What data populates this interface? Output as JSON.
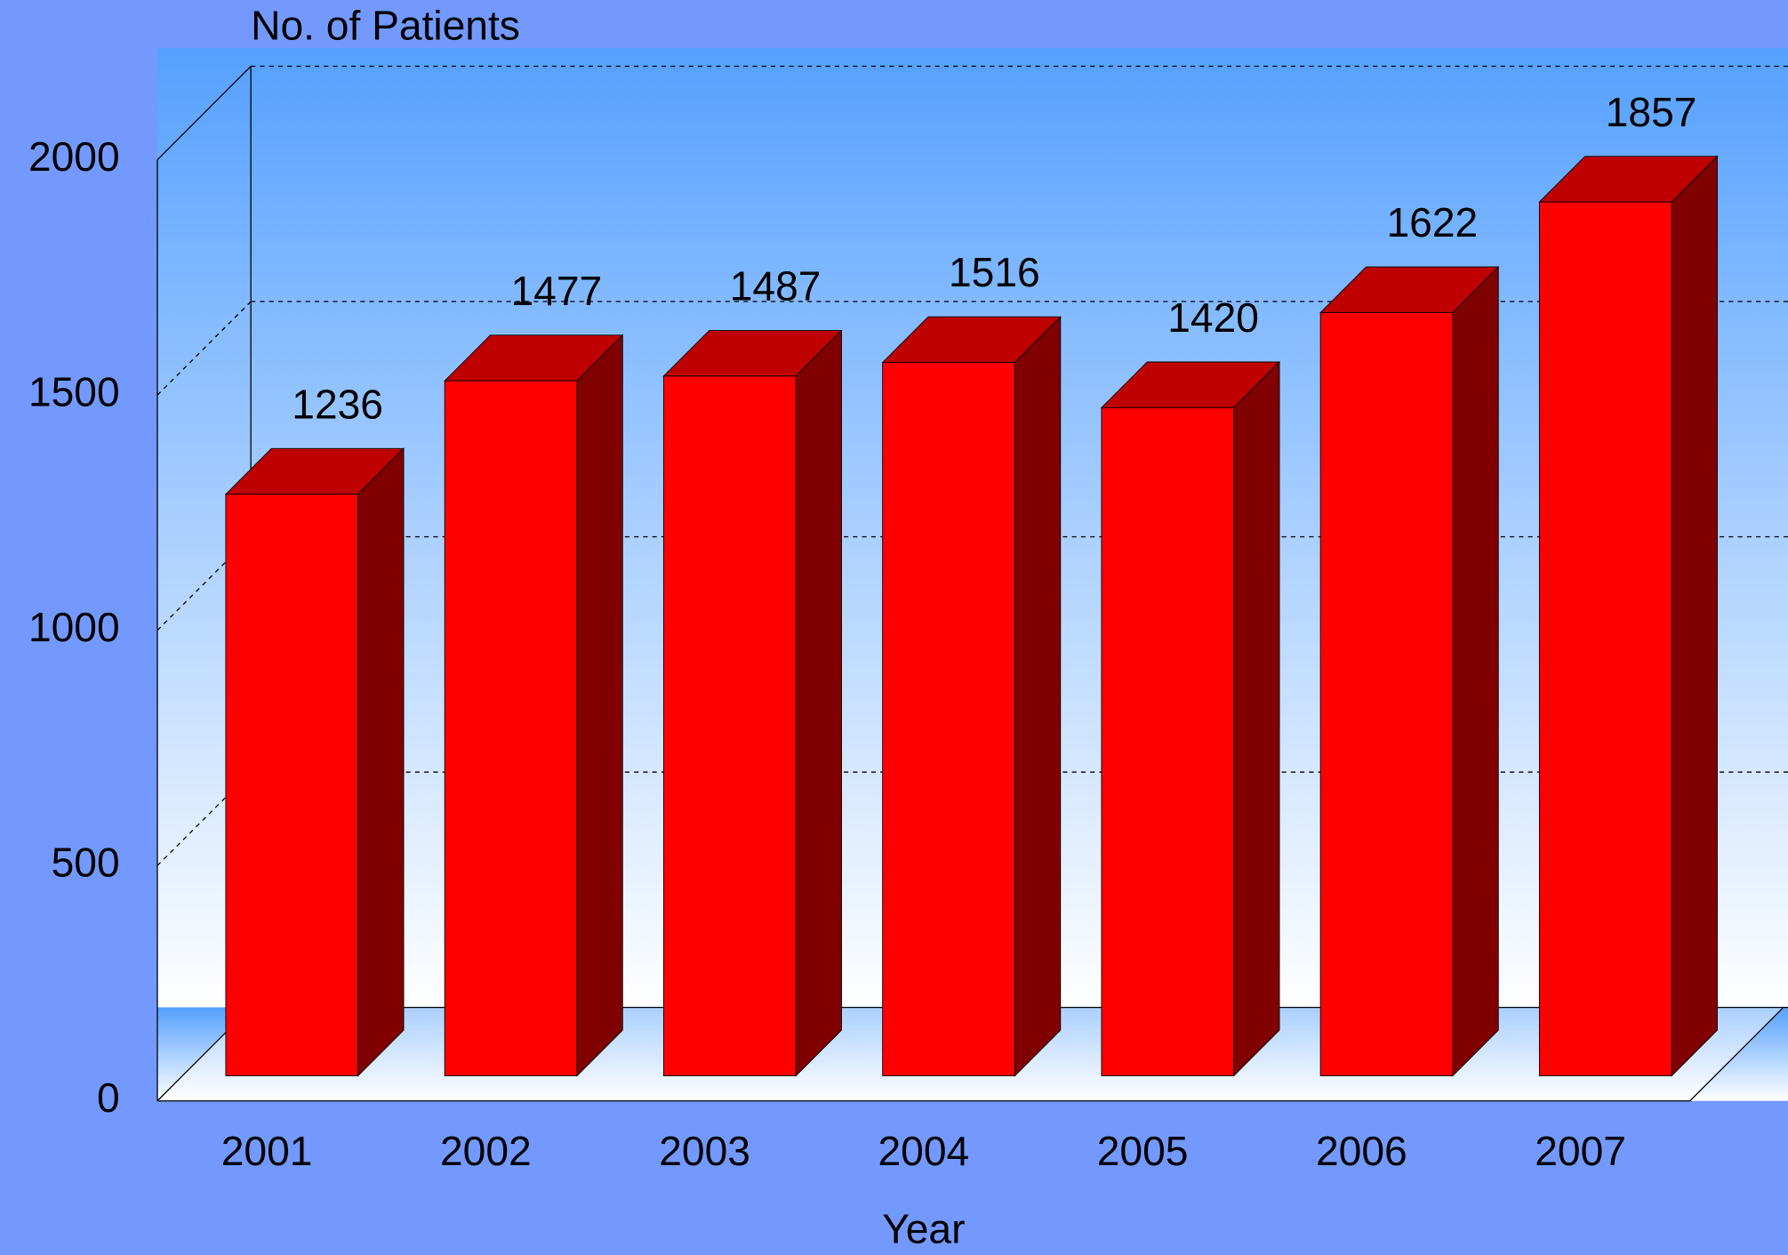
{
  "chart_data": {
    "type": "bar3d",
    "y_label": "No. of Patients",
    "x_label": "Year",
    "categories": [
      "2001",
      "2002",
      "2003",
      "2004",
      "2005",
      "2006",
      "2007"
    ],
    "values": [
      1236,
      1477,
      1487,
      1516,
      1420,
      1622,
      1857
    ],
    "color": "#ff0000",
    "ylim": [
      0,
      2000
    ],
    "yticks": [
      0,
      500,
      1000,
      1500,
      2000
    ],
    "grid": true
  }
}
